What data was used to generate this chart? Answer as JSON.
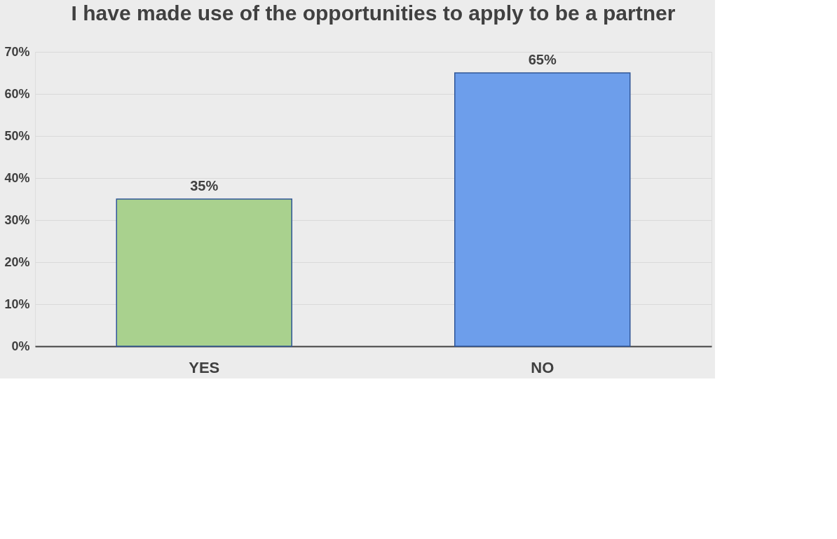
{
  "chart_data": {
    "type": "bar",
    "title": "I have made use of the opportunities to apply to be a partner",
    "categories": [
      "YES",
      "NO"
    ],
    "values": [
      35,
      65
    ],
    "colors": [
      "#a9d18e",
      "#6d9eeb"
    ],
    "value_labels": [
      "35%",
      "65%"
    ],
    "ylim": [
      0,
      70
    ],
    "yticks": [
      {
        "value": 0,
        "label": "0%"
      },
      {
        "value": 10,
        "label": "10%"
      },
      {
        "value": 20,
        "label": "20%"
      },
      {
        "value": 30,
        "label": "30%"
      },
      {
        "value": 40,
        "label": "40%"
      },
      {
        "value": 50,
        "label": "50%"
      },
      {
        "value": 60,
        "label": "60%"
      },
      {
        "value": 70,
        "label": "70%"
      }
    ],
    "grid": "y"
  }
}
